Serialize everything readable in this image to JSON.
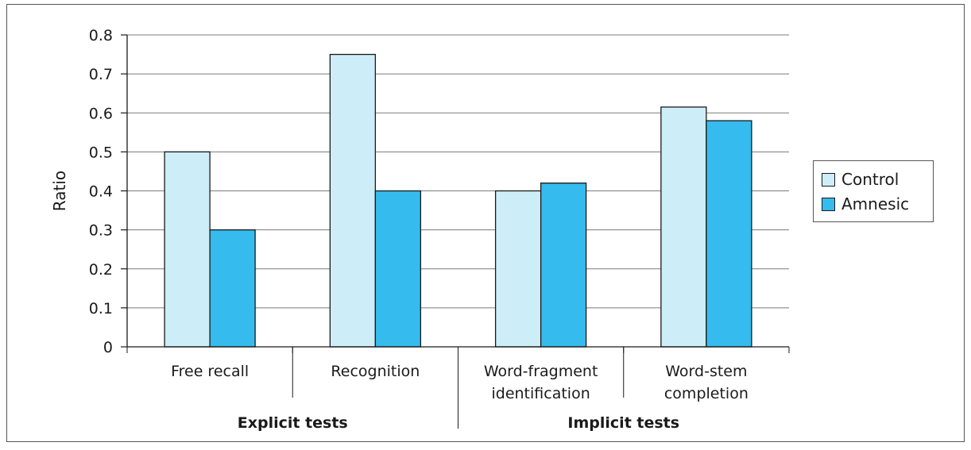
{
  "chart_data": {
    "type": "bar",
    "ylabel": "Ratio",
    "ylim": [
      0,
      0.8
    ],
    "yticks": [
      "0",
      "0.1",
      "0.2",
      "0.3",
      "0.4",
      "0.5",
      "0.6",
      "0.7",
      "0.8"
    ],
    "categories": [
      [
        "Free recall"
      ],
      [
        "Recognition"
      ],
      [
        "Word-fragment",
        "identification"
      ],
      [
        "Word-stem",
        "completion"
      ]
    ],
    "groups": [
      {
        "label": "Explicit tests",
        "categories": [
          0,
          1
        ]
      },
      {
        "label": "Implicit tests",
        "categories": [
          2,
          3
        ]
      }
    ],
    "series": [
      {
        "name": "Control",
        "color": "#cdeef8",
        "values": [
          0.5,
          0.75,
          0.4,
          0.615
        ]
      },
      {
        "name": "Amnesic",
        "color": "#35bbee",
        "values": [
          0.3,
          0.4,
          0.42,
          0.58
        ]
      }
    ],
    "grid": true,
    "legend_position": "right"
  }
}
